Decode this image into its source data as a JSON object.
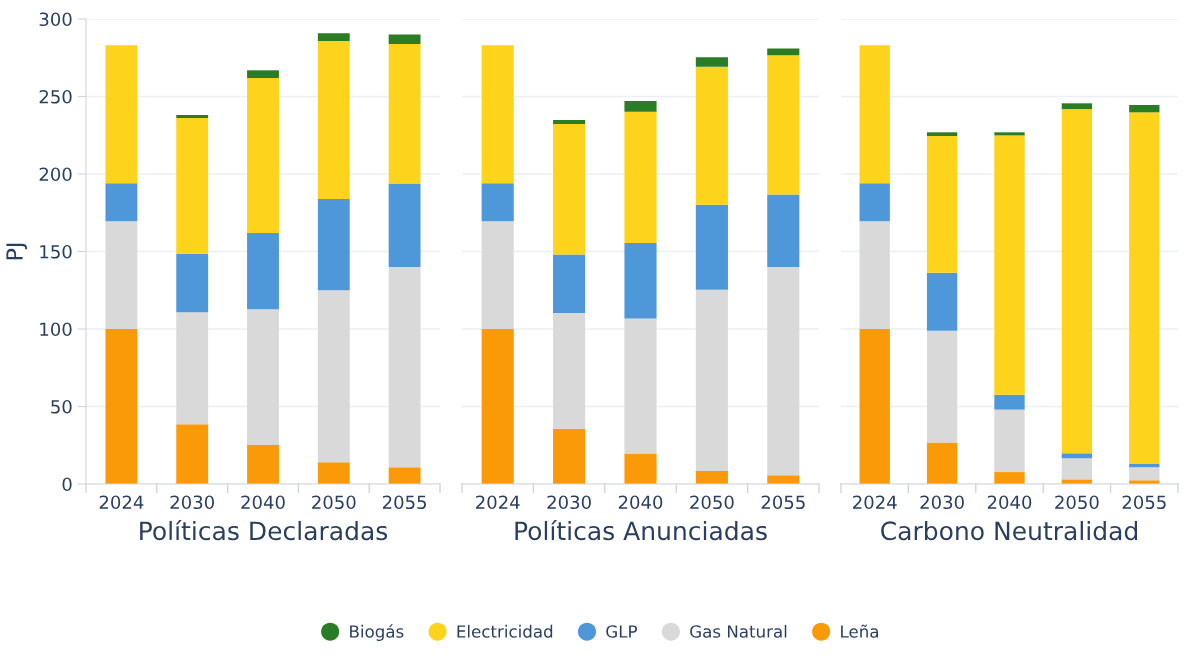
{
  "chart_data": [
    {
      "type": "bar",
      "stacked": true,
      "xlabel": "Políticas Declaradas",
      "ylabel": "PJ",
      "categories": [
        "2024",
        "2030",
        "2040",
        "2050",
        "2055"
      ],
      "ylim": [
        0,
        300
      ],
      "yticks": [
        0,
        50,
        100,
        150,
        200,
        250,
        300
      ],
      "grid": "y",
      "legend": "bottom",
      "series": [
        {
          "name": "Leña",
          "color": "#fb9a08",
          "values": [
            100,
            38.5,
            25.2,
            14,
            10.8
          ]
        },
        {
          "name": "Gas Natural",
          "color": "#d9d9d9",
          "values": [
            69.5,
            72.3,
            87.5,
            111,
            129.2
          ]
        },
        {
          "name": "GLP",
          "color": "#4e98d9",
          "values": [
            24.5,
            37.8,
            49.2,
            58.9,
            53.8
          ]
        },
        {
          "name": "Electricidad",
          "color": "#fdd41b",
          "values": [
            89,
            87.5,
            100,
            101.9,
            90.1
          ]
        },
        {
          "name": "Biogás",
          "color": "#2a7d24",
          "values": [
            0,
            1.9,
            5,
            5,
            6.1
          ]
        }
      ]
    },
    {
      "type": "bar",
      "stacked": true,
      "xlabel": "Políticas Anunciadas",
      "categories": [
        "2024",
        "2030",
        "2040",
        "2050",
        "2055"
      ],
      "ylim": [
        0,
        300
      ],
      "yticks": [
        0,
        50,
        100,
        150,
        200,
        250,
        300
      ],
      "grid": "y",
      "tick_labels": "x",
      "series": [
        {
          "name": "Leña",
          "color": "#fb9a08",
          "values": [
            100,
            35.7,
            19.6,
            8.4,
            5.6
          ]
        },
        {
          "name": "Gas Natural",
          "color": "#d9d9d9",
          "values": [
            69.5,
            74.6,
            87.1,
            117,
            134.4
          ]
        },
        {
          "name": "GLP",
          "color": "#4e98d9",
          "values": [
            24.5,
            37.7,
            48.8,
            54.8,
            46.7
          ]
        },
        {
          "name": "Electricidad",
          "color": "#fdd41b",
          "values": [
            89,
            84.3,
            84.7,
            89,
            89.9
          ]
        },
        {
          "name": "Biogás",
          "color": "#2a7d24",
          "values": [
            0,
            2.5,
            6.9,
            6.1,
            4.3
          ]
        }
      ]
    },
    {
      "type": "bar",
      "stacked": true,
      "xlabel": "Carbono Neutralidad",
      "categories": [
        "2024",
        "2030",
        "2040",
        "2050",
        "2055"
      ],
      "ylim": [
        0,
        300
      ],
      "yticks": [
        0,
        50,
        100,
        150,
        200,
        250,
        300
      ],
      "grid": "y",
      "tick_labels": "x",
      "series": [
        {
          "name": "Leña",
          "color": "#fb9a08",
          "values": [
            100,
            26.7,
            7.7,
            3,
            2.4
          ]
        },
        {
          "name": "Gas Natural",
          "color": "#d9d9d9",
          "values": [
            69.5,
            72.2,
            40.3,
            13.6,
            8.4
          ]
        },
        {
          "name": "GLP",
          "color": "#4e98d9",
          "values": [
            24.5,
            37.4,
            9.6,
            3.2,
            2.1
          ]
        },
        {
          "name": "Electricidad",
          "color": "#fdd41b",
          "values": [
            89,
            88.2,
            167.3,
            222.1,
            226.9
          ]
        },
        {
          "name": "Biogás",
          "color": "#2a7d24",
          "values": [
            0,
            2.4,
            2,
            3.7,
            4.7
          ]
        }
      ]
    }
  ]
}
